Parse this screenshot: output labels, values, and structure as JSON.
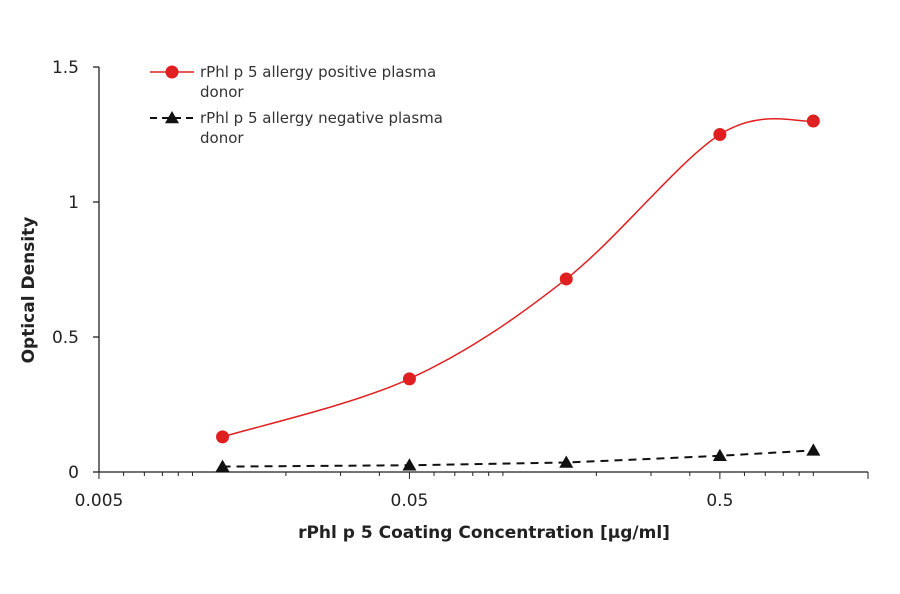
{
  "chart_data": {
    "type": "line",
    "xscale": "log",
    "xlim": [
      0.005,
      1.5
    ],
    "ylim": [
      0,
      1.5
    ],
    "xticks": [
      0.005,
      0.05,
      0.5
    ],
    "xtick_labels": [
      "0.005",
      "0.05",
      "0.5"
    ],
    "yticks": [
      0,
      0.5,
      1,
      1.5
    ],
    "ytick_labels": [
      "0",
      "0.5",
      "1",
      "1.5"
    ],
    "xlabel": "rPhl p 5 Coating Concentration [µg/ml]",
    "ylabel": "Optical Density",
    "legend_position": "top-left",
    "grid": false,
    "series": [
      {
        "name": "rPhl p 5 allergy positive plasma donor",
        "name_lines": [
          "rPhl p 5 allergy positive plasma",
          "donor"
        ],
        "color": "#e02020",
        "marker": "circle",
        "line": "solid",
        "smooth": true,
        "x": [
          0.0125,
          0.05,
          0.16,
          0.5,
          1.0
        ],
        "y": [
          0.13,
          0.345,
          0.715,
          1.25,
          1.3
        ]
      },
      {
        "name": "rPhl p 5 allergy negative plasma donor",
        "name_lines": [
          "rPhl p 5 allergy negative plasma",
          "donor"
        ],
        "color": "#111111",
        "marker": "triangle",
        "line": "dashed",
        "smooth": false,
        "x": [
          0.0125,
          0.05,
          0.16,
          0.5,
          1.0
        ],
        "y": [
          0.02,
          0.025,
          0.035,
          0.06,
          0.08
        ]
      }
    ]
  }
}
